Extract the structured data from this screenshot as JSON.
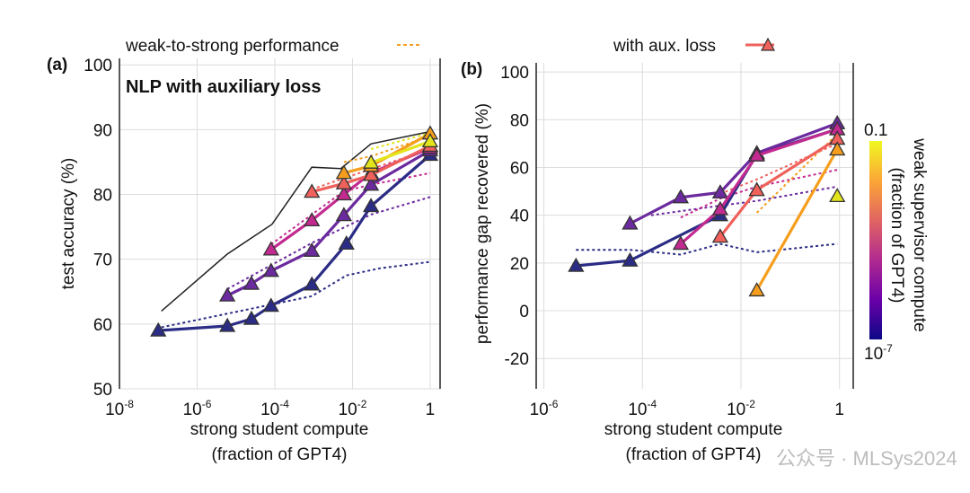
{
  "colors": {
    "navy": "#2b2c85",
    "purple": "#6b2a9e",
    "magenta": "#c22a8f",
    "coral": "#ef615a",
    "orange": "#f59e1e",
    "yellow": "#e4e41c",
    "ceiling": "#222222"
  },
  "legend": {
    "a_label": "weak-to-strong performance",
    "a_marker": "orange-dashed-line",
    "b_label": "with aux. loss",
    "b_marker": "coral-line-triangle"
  },
  "colorbar": {
    "top_label": "0.1",
    "bottom_base": "10",
    "bottom_exp": "-7",
    "title1": "weak supervisor compute",
    "title2": "(fraction of GPT4)",
    "colors": [
      "#0d0887",
      "#6a00a8",
      "#b12a90",
      "#e16462",
      "#fca636",
      "#f0f921"
    ]
  },
  "watermark": {
    "text": "公众号 · MLSys2024"
  },
  "chart_data": [
    {
      "type": "line",
      "panel_label": "(a)",
      "title": "NLP with auxiliary loss",
      "xlabel": "strong student compute",
      "xlabel2": "(fraction of GPT4)",
      "ylabel": "test accuracy (%)",
      "xscale": "log",
      "xlim": [
        1e-08,
        1.8
      ],
      "ylim": [
        50,
        101
      ],
      "grid": true,
      "xticks": [
        {
          "v": 1e-08,
          "base": "10",
          "exp": "-8"
        },
        {
          "v": 1e-06,
          "base": "10",
          "exp": "-6"
        },
        {
          "v": 0.0001,
          "base": "10",
          "exp": "-4"
        },
        {
          "v": 0.01,
          "base": "10",
          "exp": "-2"
        },
        {
          "v": 1,
          "base": "1",
          "exp": ""
        }
      ],
      "yticks": [
        50,
        60,
        70,
        80,
        90,
        100
      ],
      "ceiling": {
        "x": [
          1.2e-07,
          6e-06,
          8.5e-05,
          0.0009,
          0.005,
          0.03,
          1
        ],
        "y": [
          62,
          70.8,
          75.4,
          84.2,
          84,
          87.8,
          89.7
        ]
      },
      "series": [
        {
          "color": "navy",
          "x": [
            1e-07,
            6e-06,
            2.5e-05,
            8e-05,
            0.0009,
            0.007,
            0.03,
            1
          ],
          "y": [
            59.0,
            59.7,
            60.8,
            62.8,
            66.1,
            72.4,
            78.2,
            86.1
          ],
          "weak": {
            "x": [
              1.2e-07,
              0.0009,
              0.007,
              0.05,
              1
            ],
            "y": [
              59.5,
              64.3,
              67.5,
              68.6,
              69.6
            ]
          }
        },
        {
          "color": "purple",
          "x": [
            6e-06,
            2.5e-05,
            8e-05,
            0.0009,
            0.006,
            0.03,
            1
          ],
          "y": [
            64.4,
            66.2,
            68.2,
            71.3,
            76.8,
            81.5,
            86.8
          ],
          "weak": {
            "x": [
              6e-06,
              0.0009,
              0.03,
              1
            ],
            "y": [
              65.4,
              72.5,
              76.9,
              79.6
            ]
          }
        },
        {
          "color": "magenta",
          "x": [
            8e-05,
            0.0009,
            0.006,
            0.03,
            1
          ],
          "y": [
            71.5,
            76.0,
            80.0,
            83.3,
            87.2
          ],
          "weak": {
            "x": [
              8e-05,
              0.006,
              0.03,
              1
            ],
            "y": [
              72.3,
              80.5,
              81.5,
              83.3
            ]
          }
        },
        {
          "color": "coral",
          "x": [
            0.0009,
            0.006,
            0.03,
            1
          ],
          "y": [
            80.4,
            81.7,
            83.0,
            87.5
          ],
          "weak": {
            "x": [
              0.0009,
              0.006,
              1
            ],
            "y": [
              80.8,
              82.5,
              87.0
            ]
          }
        },
        {
          "color": "orange",
          "x": [
            0.006,
            0.03,
            1
          ],
          "y": [
            83.3,
            84.4,
            89.4
          ],
          "weak": {
            "x": [
              0.006,
              0.03,
              1
            ],
            "y": [
              85.0,
              85.9,
              89.0
            ]
          }
        },
        {
          "color": "yellow",
          "x": [
            0.03,
            1
          ],
          "y": [
            84.9,
            88.2
          ],
          "weak": {
            "x": [
              0.03,
              1
            ],
            "y": [
              87.0,
              89.5
            ]
          }
        }
      ]
    },
    {
      "type": "line",
      "panel_label": "(b)",
      "title": "",
      "xlabel": "strong student compute",
      "xlabel2": "(fraction of GPT4)",
      "ylabel": "performance gap recovered (%)",
      "xscale": "log",
      "xlim": [
        7e-07,
        1.9
      ],
      "ylim": [
        -32.7,
        103.8
      ],
      "grid": true,
      "xticks": [
        {
          "v": 1e-06,
          "base": "10",
          "exp": "-6"
        },
        {
          "v": 0.0001,
          "base": "10",
          "exp": "-4"
        },
        {
          "v": 0.01,
          "base": "10",
          "exp": "-2"
        },
        {
          "v": 1,
          "base": "1",
          "exp": ""
        }
      ],
      "yticks": [
        -20,
        0,
        20,
        40,
        60,
        80,
        100
      ],
      "series": [
        {
          "color": "navy",
          "x": [
            4.5e-06,
            5.6e-05,
            0.0038,
            0.021,
            0.9
          ],
          "y": [
            18.8,
            21.0,
            40.0,
            65.5,
            76.0
          ],
          "weak": {
            "x": [
              4.5e-06,
              5.6e-05,
              0.0006,
              0.0038,
              0.021,
              0.9
            ],
            "y": [
              25.5,
              25.5,
              23.5,
              28.0,
              24.5,
              28.0
            ]
          }
        },
        {
          "color": "purple",
          "x": [
            5.6e-05,
            0.0006,
            0.0038,
            0.021,
            0.9
          ],
          "y": [
            36.5,
            47.5,
            49.5,
            66.0,
            78.5
          ],
          "weak": {
            "x": [
              0.00015,
              0.0038,
              0.021,
              0.9
            ],
            "y": [
              40,
              44,
              46,
              52
            ]
          }
        },
        {
          "color": "magenta",
          "x": [
            0.0006,
            0.0038,
            0.021,
            0.9
          ],
          "y": [
            28.0,
            42.5,
            65.0,
            76.0
          ],
          "weak": {
            "x": [
              0.0006,
              0.0038,
              0.021,
              0.9
            ],
            "y": [
              39,
              47,
              52,
              59
            ]
          }
        },
        {
          "color": "coral",
          "x": [
            0.0038,
            0.021,
            0.9
          ],
          "y": [
            31.0,
            50.5,
            72.0
          ],
          "weak": {
            "x": [
              0.0038,
              0.021,
              0.9
            ],
            "y": [
              49,
              55,
              70
            ]
          }
        },
        {
          "color": "orange",
          "x": [
            0.021,
            0.9
          ],
          "y": [
            8.5,
            67.5
          ],
          "weak": {
            "x": [
              0.021,
              0.9
            ],
            "y": [
              41,
              74
            ]
          }
        },
        {
          "color": "yellow",
          "x": [
            0.9
          ],
          "y": [
            48.0
          ],
          "weak": null
        }
      ]
    }
  ]
}
